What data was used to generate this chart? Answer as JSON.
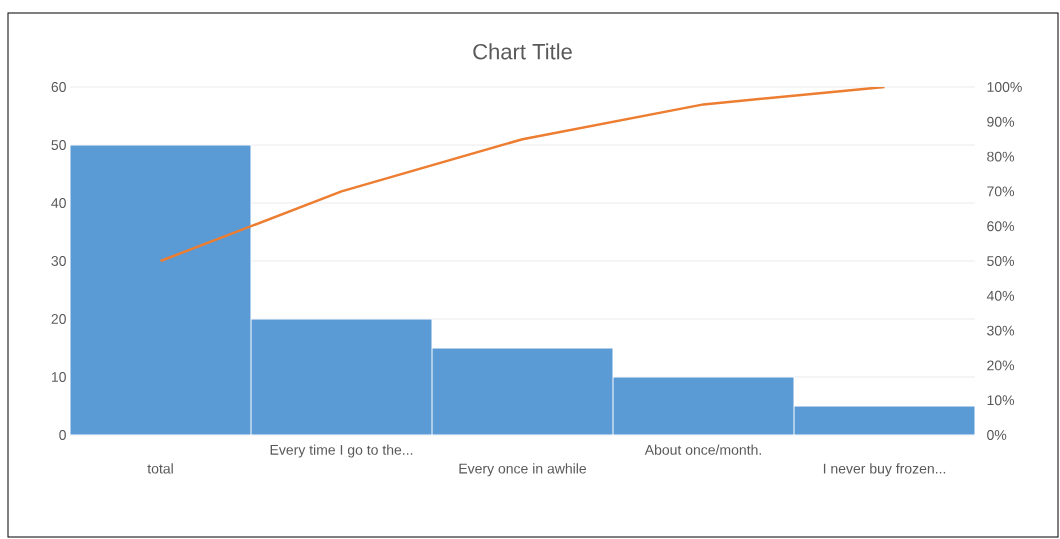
{
  "chart_data": {
    "type": "bar",
    "title": "Chart Title",
    "categories": [
      "total",
      "Every time I go to the...",
      "Every once in awhile",
      "About once/month.",
      "I never buy frozen..."
    ],
    "series": [
      {
        "color": "#5b9bd5",
        "values": [
          50,
          20,
          15,
          10,
          5
        ]
      },
      {
        "type": "line",
        "axis": "y2",
        "color": "#ed7d31",
        "values": [
          50,
          70,
          85,
          95,
          100
        ]
      }
    ],
    "ylim": [
      0,
      60
    ],
    "yticks": [
      0,
      10,
      20,
      30,
      40,
      50,
      60
    ],
    "y2lim": [
      0,
      100
    ],
    "y2ticks": [
      {
        "value": 0,
        "label": "0%"
      },
      {
        "value": 10,
        "label": "10%"
      },
      {
        "value": 20,
        "label": "20%"
      },
      {
        "value": 30,
        "label": "30%"
      },
      {
        "value": 40,
        "label": "40%"
      },
      {
        "value": 50,
        "label": "50%"
      },
      {
        "value": 60,
        "label": "60%"
      },
      {
        "value": 70,
        "label": "70%"
      },
      {
        "value": 80,
        "label": "80%"
      },
      {
        "value": 90,
        "label": "90%"
      },
      {
        "value": 100,
        "label": "100%"
      }
    ],
    "grid": "y",
    "marker": "none"
  }
}
